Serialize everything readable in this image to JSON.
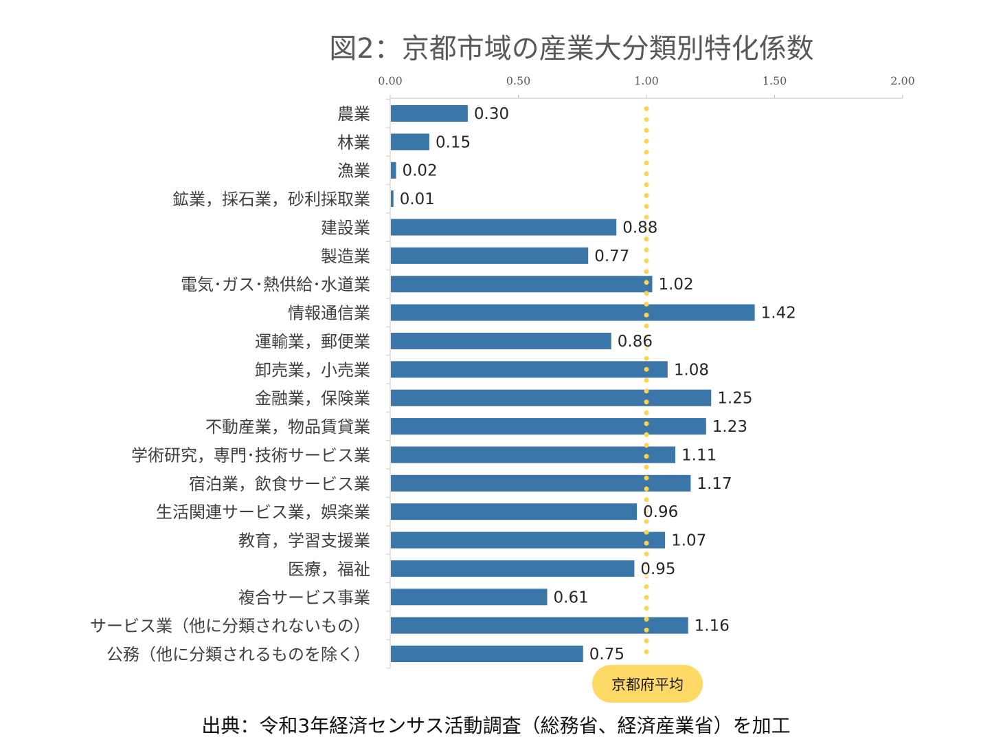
{
  "chart_data": {
    "type": "bar",
    "orientation": "horizontal",
    "title": "図2：京都市域の産業大分類別特化係数",
    "xlabel": "",
    "ylabel": "",
    "xlim": [
      0,
      2
    ],
    "x_ticks": [
      "0.00",
      "0.50",
      "1.00",
      "1.50",
      "2.00"
    ],
    "x_tick_values": [
      0,
      0.5,
      1.0,
      1.5,
      2.0
    ],
    "axis_position": "top",
    "grid": false,
    "categories": [
      "農業",
      "林業",
      "漁業",
      "鉱業，採石業，砂利採取業",
      "建設業",
      "製造業",
      "電気･ガス･熱供給･水道業",
      "情報通信業",
      "運輸業，郵便業",
      "卸売業，小売業",
      "金融業，保険業",
      "不動産業，物品賃貸業",
      "学術研究，専門･技術サービス業",
      "宿泊業，飲食サービス業",
      "生活関連サービス業，娯楽業",
      "教育，学習支援業",
      "医療，福祉",
      "複合サービス事業",
      "サービス業（他に分類されないもの）",
      "公務（他に分類されるものを除く）"
    ],
    "values": [
      0.3,
      0.15,
      0.02,
      0.01,
      0.88,
      0.77,
      1.02,
      1.42,
      0.86,
      1.08,
      1.25,
      1.23,
      1.11,
      1.17,
      0.96,
      1.07,
      0.95,
      0.61,
      1.16,
      0.75
    ],
    "value_labels": [
      "0.30",
      "0.15",
      "0.02",
      "0.01",
      "0.88",
      "0.77",
      "1.02",
      "1.42",
      "0.86",
      "1.08",
      "1.25",
      "1.23",
      "1.11",
      "1.17",
      "0.96",
      "1.07",
      "0.95",
      "0.61",
      "1.16",
      "0.75"
    ],
    "reference_line": {
      "value": 1.0,
      "label": "京都府平均",
      "style": "dotted"
    },
    "colors": {
      "bar": "#3B76A8",
      "reference": "#FFD34E",
      "badge": "#FFD966"
    }
  },
  "source": "出典：令和3年経済センサス活動調査（総務省、経済産業省）を加工"
}
